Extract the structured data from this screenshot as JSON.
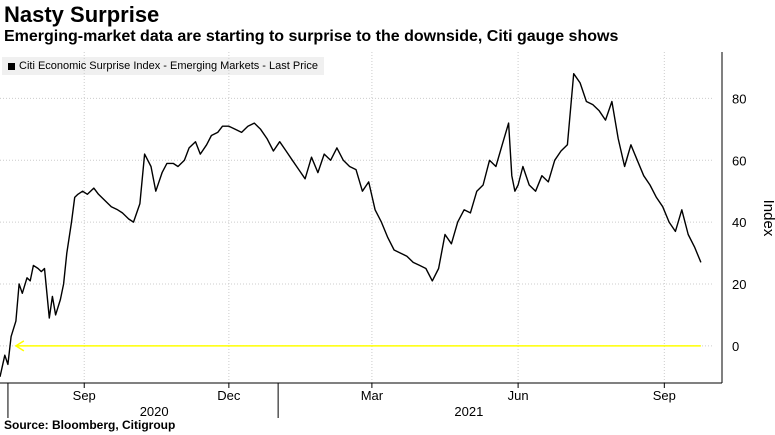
{
  "title": "Nasty Surprise",
  "subtitle": "Emerging-market data are starting to surprise to the downside, Citi gauge shows",
  "source": "Source: Bloomberg, Citigroup",
  "colors": {
    "line": "#000000",
    "annotation": "#ffff00",
    "grid": "#cccccc"
  },
  "chart_data": {
    "type": "line",
    "title": "Nasty Surprise",
    "ylabel": "Index",
    "ylim": [
      -12,
      95
    ],
    "yticks": [
      0,
      20,
      40,
      60,
      80
    ],
    "xlim": [
      "2020-07-10",
      "2021-10-01"
    ],
    "x_tick_labels": [
      {
        "label": "Sep",
        "date": "2020-09-01"
      },
      {
        "label": "Dec",
        "date": "2020-12-01"
      },
      {
        "label": "Mar",
        "date": "2021-03-01"
      },
      {
        "label": "Jun",
        "date": "2021-06-01"
      },
      {
        "label": "Sep",
        "date": "2021-09-01"
      }
    ],
    "year_labels": [
      {
        "label": "2020",
        "date": "2020-10-15"
      },
      {
        "label": "2021",
        "date": "2021-05-01"
      }
    ],
    "year_dividers": [
      "2020-07-15",
      "2021-01-01"
    ],
    "legend": "top-left",
    "grid": true,
    "series": [
      {
        "name": "Citi Economic Surprise Index - Emerging Markets - Last Price",
        "x": [
          "2020-07-10",
          "2020-07-13",
          "2020-07-15",
          "2020-07-17",
          "2020-07-20",
          "2020-07-22",
          "2020-07-24",
          "2020-07-27",
          "2020-07-29",
          "2020-07-31",
          "2020-08-03",
          "2020-08-05",
          "2020-08-07",
          "2020-08-10",
          "2020-08-12",
          "2020-08-14",
          "2020-08-17",
          "2020-08-19",
          "2020-08-21",
          "2020-08-24",
          "2020-08-26",
          "2020-08-28",
          "2020-08-31",
          "2020-09-03",
          "2020-09-07",
          "2020-09-10",
          "2020-09-14",
          "2020-09-18",
          "2020-09-22",
          "2020-09-25",
          "2020-09-29",
          "2020-10-02",
          "2020-10-06",
          "2020-10-09",
          "2020-10-13",
          "2020-10-16",
          "2020-10-20",
          "2020-10-23",
          "2020-10-27",
          "2020-10-30",
          "2020-11-03",
          "2020-11-06",
          "2020-11-10",
          "2020-11-13",
          "2020-11-17",
          "2020-11-20",
          "2020-11-24",
          "2020-11-27",
          "2020-12-01",
          "2020-12-05",
          "2020-12-09",
          "2020-12-13",
          "2020-12-17",
          "2020-12-21",
          "2020-12-25",
          "2020-12-29",
          "2021-01-02",
          "2021-01-06",
          "2021-01-10",
          "2021-01-14",
          "2021-01-18",
          "2021-01-22",
          "2021-01-26",
          "2021-01-30",
          "2021-02-03",
          "2021-02-07",
          "2021-02-11",
          "2021-02-15",
          "2021-02-19",
          "2021-02-23",
          "2021-02-27",
          "2021-03-03",
          "2021-03-07",
          "2021-03-11",
          "2021-03-15",
          "2021-03-19",
          "2021-03-23",
          "2021-03-27",
          "2021-03-31",
          "2021-04-04",
          "2021-04-08",
          "2021-04-12",
          "2021-04-16",
          "2021-04-20",
          "2021-04-24",
          "2021-04-28",
          "2021-05-02",
          "2021-05-06",
          "2021-05-10",
          "2021-05-14",
          "2021-05-18",
          "2021-05-22",
          "2021-05-26",
          "2021-05-28",
          "2021-05-30",
          "2021-06-01",
          "2021-06-04",
          "2021-06-08",
          "2021-06-12",
          "2021-06-16",
          "2021-06-20",
          "2021-06-24",
          "2021-06-28",
          "2021-07-02",
          "2021-07-06",
          "2021-07-10",
          "2021-07-14",
          "2021-07-18",
          "2021-07-22",
          "2021-07-26",
          "2021-07-30",
          "2021-08-03",
          "2021-08-07",
          "2021-08-11",
          "2021-08-15",
          "2021-08-19",
          "2021-08-23",
          "2021-08-27",
          "2021-08-31",
          "2021-09-04",
          "2021-09-08",
          "2021-09-12",
          "2021-09-16",
          "2021-09-20",
          "2021-09-24"
        ],
        "y": [
          -10,
          -3,
          -6,
          3,
          8,
          20,
          17,
          22,
          21,
          26,
          25,
          24,
          25,
          9,
          16,
          10,
          15,
          20,
          30,
          40,
          48,
          49,
          50,
          49,
          51,
          49,
          47,
          45,
          44,
          43,
          41,
          40,
          46,
          62,
          58,
          50,
          56,
          59,
          59,
          58,
          60,
          64,
          66,
          62,
          65,
          68,
          69,
          71,
          71,
          70,
          69,
          71,
          72,
          70,
          67,
          63,
          66,
          63,
          60,
          57,
          54,
          61,
          56,
          62,
          60,
          64,
          60,
          58,
          57,
          50,
          53,
          44,
          40,
          35,
          31,
          30,
          29,
          27,
          26,
          25,
          21,
          25,
          36,
          33,
          40,
          44,
          43,
          50,
          52,
          60,
          58,
          65,
          72,
          55,
          50,
          52,
          58,
          52,
          50,
          55,
          53,
          60,
          63,
          65,
          88,
          85,
          79,
          78,
          76,
          73,
          79,
          67,
          58,
          65,
          60,
          55,
          52,
          48,
          45,
          40,
          37,
          44,
          36,
          32,
          27
        ]
      }
    ],
    "annotation": {
      "type": "arrow",
      "y": 0,
      "x_from": "2021-09-24",
      "x_to": "2020-07-20",
      "color": "#ffff00"
    }
  }
}
